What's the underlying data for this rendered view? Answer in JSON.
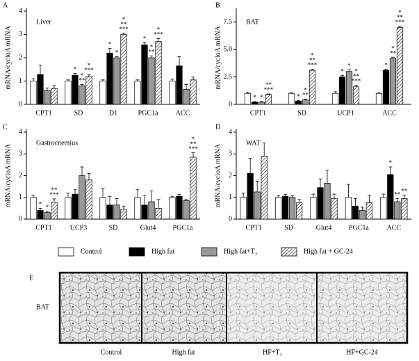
{
  "legend": [
    {
      "name": "Control",
      "color": "#ffffff"
    },
    {
      "name": "High fat",
      "color": "#000000"
    },
    {
      "name": "High fat+T₃",
      "color": "#999999"
    },
    {
      "name": "High fat + GC-24",
      "color": "#ffffff",
      "hatch": true
    }
  ],
  "chart_data": [
    {
      "type": "bar",
      "panel_label": "A",
      "title": "Liver",
      "y_label": "mRNA/cycloA mRNA",
      "categories": [
        "CPT1",
        "SD",
        "D1",
        "PGC1a",
        "ACC"
      ],
      "ylim": [
        0,
        4
      ],
      "yticks": [
        0,
        1,
        2,
        3,
        4
      ],
      "series": [
        {
          "values": [
            1.0,
            1.0,
            1.0,
            1.0,
            1.0
          ],
          "errors": [
            0.1,
            0.05,
            0.05,
            0.05,
            0.08
          ],
          "stars": [
            null,
            null,
            null,
            null,
            null
          ]
        },
        {
          "values": [
            1.28,
            1.25,
            2.2,
            2.55,
            1.65
          ],
          "errors": [
            0.4,
            0.08,
            0.2,
            0.1,
            0.4
          ],
          "stars": [
            null,
            [
              "*"
            ],
            [
              "*"
            ],
            [
              "*"
            ],
            null
          ]
        },
        {
          "values": [
            0.6,
            0.8,
            2.0,
            2.0,
            0.65
          ],
          "errors": [
            0.1,
            0.05,
            0.05,
            0.08,
            0.2
          ],
          "stars": [
            null,
            [
              "*",
              "**"
            ],
            [
              "*"
            ],
            [
              "*",
              "**"
            ],
            null
          ]
        },
        {
          "values": [
            0.68,
            1.2,
            3.0,
            2.7,
            1.05
          ],
          "errors": [
            0.12,
            0.08,
            0.05,
            0.12,
            0.12
          ],
          "stars": [
            null,
            [
              "*",
              "***"
            ],
            [
              "*",
              "**",
              "***"
            ],
            [
              "*",
              "***"
            ],
            null
          ]
        }
      ]
    },
    {
      "type": "bar",
      "panel_label": "B",
      "title": "BAT",
      "y_label": "mRNA/cycloA mRNA",
      "categories": [
        "CPT1",
        "SD",
        "UCP1",
        "ACC"
      ],
      "ylim": [
        0,
        8.5
      ],
      "yticks": [
        0,
        2.5,
        {
          "value": 5,
          "label": "5.0"
        },
        7.5
      ],
      "series": [
        {
          "values": [
            1.0,
            1.0,
            1.0,
            1.0
          ],
          "errors": [
            0.1,
            0.05,
            0.15,
            0.05
          ],
          "stars": [
            null,
            null,
            null,
            null
          ]
        },
        {
          "values": [
            0.2,
            0.3,
            2.5,
            3.1
          ],
          "errors": [
            0.05,
            0.05,
            0.15,
            0.1
          ],
          "stars": [
            [
              "*"
            ],
            [
              "*"
            ],
            [
              "*"
            ],
            [
              "*"
            ]
          ]
        },
        {
          "values": [
            0.2,
            0.4,
            3.0,
            4.2
          ],
          "errors": [
            0.05,
            0.08,
            0.15,
            0.1
          ],
          "stars": [
            [
              "*"
            ],
            [
              "*",
              "**"
            ],
            [
              "*"
            ],
            [
              "*",
              "**"
            ]
          ]
        },
        {
          "values": [
            0.9,
            3.1,
            1.6,
            7.0
          ],
          "errors": [
            0.05,
            0.1,
            0.15,
            0.1
          ],
          "stars": [
            [
              "**",
              "***"
            ],
            [
              "*",
              "**",
              "***"
            ],
            [
              "*",
              "**",
              "***"
            ],
            [
              "*",
              "**",
              "***"
            ]
          ]
        }
      ]
    },
    {
      "type": "bar",
      "panel_label": "C",
      "title": "Gastrocnemius",
      "y_label": "mRNA/cycloA mRNA",
      "categories": [
        "CPT1",
        "UCP3",
        "SD",
        "Glut4",
        "PGC1a"
      ],
      "ylim": [
        0,
        4
      ],
      "yticks": [
        0,
        1,
        2,
        3,
        4
      ],
      "series": [
        {
          "values": [
            1.0,
            1.0,
            1.0,
            1.0,
            1.0
          ],
          "errors": [
            0.1,
            0.2,
            0.4,
            0.35,
            0.05
          ],
          "stars": [
            null,
            null,
            null,
            null,
            null
          ]
        },
        {
          "values": [
            0.4,
            1.15,
            0.65,
            0.65,
            1.05
          ],
          "errors": [
            0.1,
            0.2,
            0.4,
            0.45,
            0.08
          ],
          "stars": [
            [
              "*"
            ],
            null,
            null,
            null,
            null
          ]
        },
        {
          "values": [
            0.3,
            2.0,
            0.65,
            0.8,
            0.85
          ],
          "errors": [
            0.05,
            0.4,
            0.3,
            0.5,
            0.05
          ],
          "stars": [
            [
              "*"
            ],
            null,
            null,
            null,
            null
          ]
        },
        {
          "values": [
            0.78,
            1.8,
            0.45,
            0.5,
            2.85
          ],
          "errors": [
            0.15,
            0.3,
            0.15,
            0.4,
            0.2
          ],
          "stars": [
            [
              "**",
              "***"
            ],
            null,
            null,
            null,
            [
              "*",
              "**",
              "***"
            ]
          ]
        }
      ]
    },
    {
      "type": "bar",
      "panel_label": "D",
      "title": "WAT",
      "y_label": "mRNA/cycloA mRNA",
      "categories": [
        "CPT1",
        "SD",
        "Glut4",
        "PGC1a",
        "ACC"
      ],
      "ylim": [
        0,
        4
      ],
      "yticks": [
        0,
        1,
        2,
        3,
        4
      ],
      "series": [
        {
          "values": [
            1.0,
            1.0,
            1.0,
            1.0,
            1.0
          ],
          "errors": [
            0.2,
            0.08,
            0.15,
            0.6,
            0.15
          ],
          "stars": [
            null,
            null,
            null,
            null,
            null
          ]
        },
        {
          "values": [
            2.1,
            1.05,
            1.45,
            0.6,
            2.05
          ],
          "errors": [
            0.7,
            0.08,
            0.4,
            0.35,
            0.35
          ],
          "stars": [
            null,
            null,
            null,
            null,
            [
              "*"
            ]
          ]
        },
        {
          "values": [
            1.25,
            1.0,
            1.65,
            0.4,
            0.8
          ],
          "errors": [
            0.5,
            0.08,
            0.6,
            0.15,
            0.15
          ],
          "stars": [
            null,
            null,
            null,
            null,
            [
              "**"
            ]
          ]
        },
        {
          "values": [
            2.9,
            0.75,
            0.95,
            0.75,
            0.95
          ],
          "errors": [
            0.6,
            0.15,
            0.2,
            0.35,
            0.15
          ],
          "stars": [
            null,
            null,
            null,
            null,
            [
              "**"
            ]
          ]
        }
      ]
    }
  ],
  "panel_e": {
    "label": "E",
    "tissue": "BAT",
    "captions": [
      "Control",
      "High fat",
      "HF+T₃",
      "HF+GC-24"
    ]
  }
}
